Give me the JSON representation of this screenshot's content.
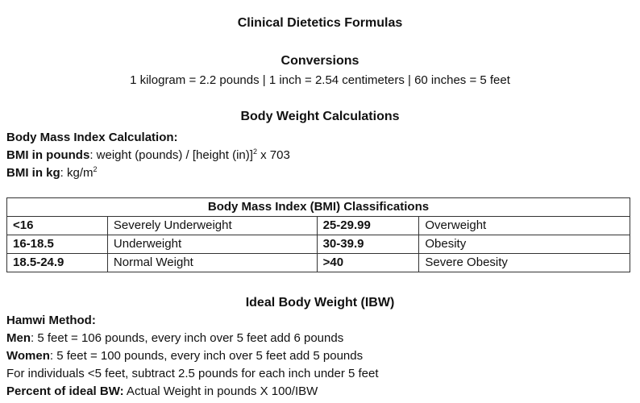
{
  "document": {
    "title": "Clinical Dietetics Formulas"
  },
  "conversions": {
    "heading": "Conversions",
    "line": "1 kilogram = 2.2 pounds | 1 inch = 2.54 centimeters | 60 inches = 5 feet"
  },
  "body_weight": {
    "heading": "Body Weight Calculations",
    "bmi_calc_label": "Body Mass Index Calculation:",
    "bmi_pounds_label": "BMI in pounds",
    "bmi_pounds_formula_a": ": weight (pounds) / [height (in)]",
    "bmi_pounds_exponent": "2",
    "bmi_pounds_formula_b": " x 703",
    "bmi_kg_label": "BMI in kg",
    "bmi_kg_formula": ": kg/m",
    "bmi_kg_exponent": "2"
  },
  "bmi_table": {
    "caption": "Body Mass Index (BMI) Classifications",
    "rows": [
      {
        "range_a": "<16",
        "class_a": "Severely Underweight",
        "range_b": "25-29.99",
        "class_b": "Overweight"
      },
      {
        "range_a": "16-18.5",
        "class_a": "Underweight",
        "range_b": "30-39.9",
        "class_b": "Obesity"
      },
      {
        "range_a": "18.5-24.9",
        "class_a": "Normal Weight",
        "range_b": ">40",
        "class_b": "Severe Obesity"
      }
    ]
  },
  "ibw": {
    "heading": "Ideal Body Weight (IBW)",
    "method_label": "Hamwi Method:",
    "men_label": "Men",
    "men_text": ": 5 feet = 106 pounds, every inch over 5 feet add 6 pounds",
    "women_label": "Women",
    "women_text": ": 5 feet = 100 pounds, every inch over 5 feet add 5 pounds",
    "short_text": "For individuals <5 feet, subtract 2.5 pounds for each inch under 5 feet",
    "percent_label": "Percent of ideal BW:",
    "percent_text": " Actual Weight in pounds X 100/IBW"
  }
}
